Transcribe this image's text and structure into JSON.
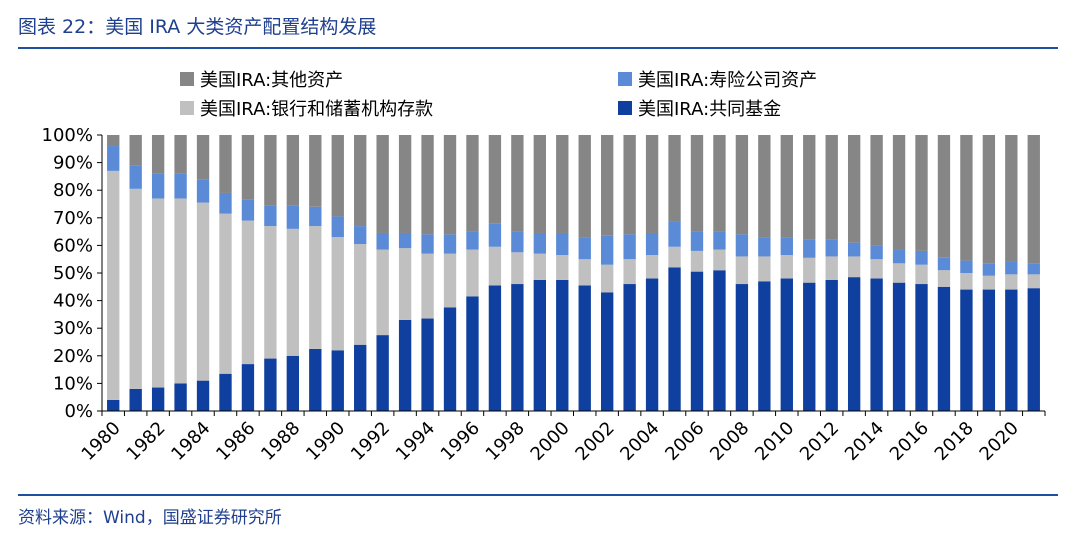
{
  "figure_title": "图表 22：美国 IRA 大类资产配置结构发展",
  "source_note": "资料来源：Wind，国盛证券研究所",
  "colors": {
    "mutual_funds": "#0f3f9f",
    "bank_savings": "#c0c0c0",
    "insurance": "#5b8bd6",
    "other": "#868686",
    "title": "#1f3f8f"
  },
  "chart_data": {
    "type": "bar",
    "stacked": true,
    "title": "图表 22：美国 IRA 大类资产配置结构发展",
    "xlabel": "",
    "ylabel": "",
    "ylim": [
      0,
      100
    ],
    "y_ticks": [
      "0%",
      "10%",
      "20%",
      "30%",
      "40%",
      "50%",
      "60%",
      "70%",
      "80%",
      "90%",
      "100%"
    ],
    "x_tick_labels": [
      "1980",
      "1982",
      "1984",
      "1986",
      "1988",
      "1990",
      "1992",
      "1994",
      "1996",
      "1998",
      "2000",
      "2002",
      "2004",
      "2006",
      "2008",
      "2010",
      "2012",
      "2014",
      "2016",
      "2018",
      "2020"
    ],
    "categories": [
      "1980",
      "1981",
      "1982",
      "1983",
      "1984",
      "1985",
      "1986",
      "1987",
      "1988",
      "1989",
      "1990",
      "1991",
      "1992",
      "1993",
      "1994",
      "1995",
      "1996",
      "1997",
      "1998",
      "1999",
      "2000",
      "2001",
      "2002",
      "2003",
      "2004",
      "2005",
      "2006",
      "2007",
      "2008",
      "2009",
      "2010",
      "2011",
      "2012",
      "2013",
      "2014",
      "2015",
      "2016",
      "2017",
      "2018",
      "2019",
      "2020",
      "2021"
    ],
    "legend_order": [
      "美国IRA:其他资产",
      "美国IRA:寿险公司资产",
      "美国IRA:银行和储蓄机构存款",
      "美国IRA:共同基金"
    ],
    "series": [
      {
        "name": "美国IRA:共同基金",
        "key": "mutual_funds",
        "values": [
          4,
          8,
          8.5,
          10,
          11,
          13.5,
          17,
          19,
          20,
          22.5,
          22,
          24,
          27.5,
          33,
          33.5,
          37.5,
          41.5,
          45.5,
          46,
          47.5,
          47.5,
          45.5,
          43,
          46,
          48,
          52,
          50.5,
          51,
          46,
          47,
          48,
          46.5,
          47.5,
          48.5,
          48,
          46.5,
          46,
          45,
          44,
          44,
          44,
          44.5
        ]
      },
      {
        "name": "美国IRA:银行和储蓄机构存款",
        "key": "bank_savings",
        "values": [
          83,
          72.5,
          68.5,
          67,
          64.5,
          58,
          52,
          48,
          46,
          44.5,
          41,
          36.5,
          31,
          26,
          23.5,
          19.5,
          17,
          14,
          11.5,
          9.5,
          9,
          9.5,
          10,
          9,
          8.5,
          7.5,
          7.5,
          7.5,
          10,
          9,
          8.5,
          9,
          8.5,
          7.5,
          7,
          7,
          7,
          6,
          6,
          5,
          5.5,
          5
        ]
      },
      {
        "name": "美国IRA:寿险公司资产",
        "key": "insurance",
        "values": [
          9,
          8.5,
          9,
          9,
          8.5,
          7.5,
          7.5,
          7.5,
          8.5,
          7,
          7.5,
          6.5,
          6,
          5.5,
          7,
          7,
          6.5,
          8.5,
          7.5,
          7.5,
          8,
          8,
          10.5,
          9,
          8,
          9,
          7,
          6.5,
          8,
          7,
          6.5,
          6.5,
          6,
          5,
          5,
          5,
          5,
          4.5,
          4.5,
          4.5,
          4.5,
          4
        ]
      },
      {
        "name": "美国IRA:其他资产",
        "key": "other",
        "values": [
          4,
          11,
          14,
          14,
          16,
          21,
          23.5,
          25.5,
          25.5,
          26,
          29.5,
          33,
          35.5,
          35.5,
          36,
          36,
          35,
          32,
          35,
          35.5,
          35.5,
          37,
          36.5,
          36,
          35.5,
          31.5,
          35,
          35,
          36,
          37,
          37,
          38,
          38,
          39,
          40,
          41.5,
          42,
          44.5,
          45.5,
          46.5,
          46,
          46.5
        ]
      }
    ],
    "legend_position": "top",
    "grid": false
  }
}
